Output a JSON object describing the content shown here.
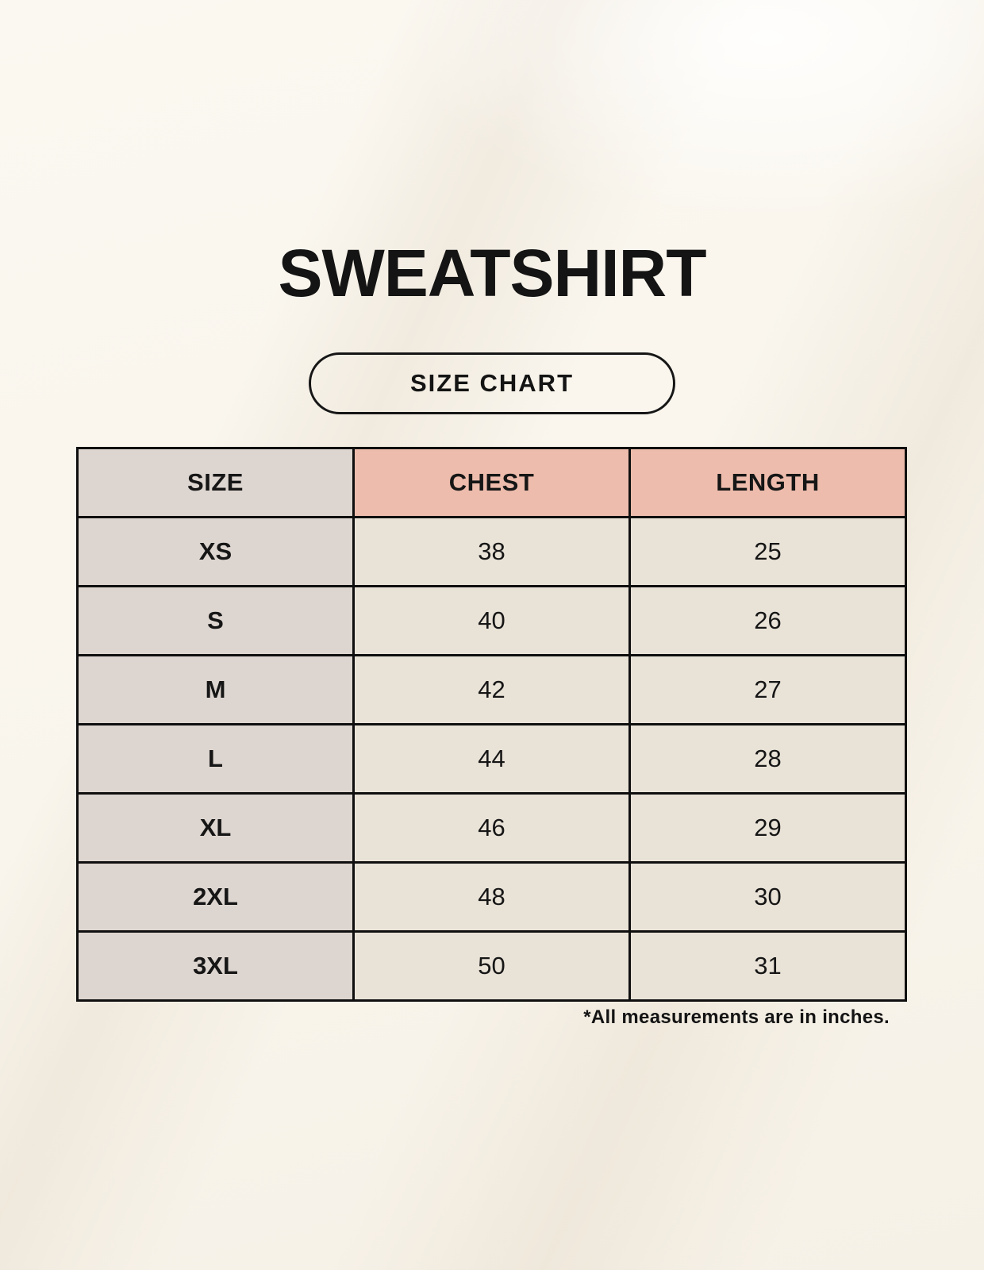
{
  "page": {
    "title": "SWEATSHIRT",
    "size_chart_label": "SIZE CHART",
    "footnote": "*All measurements are in inches."
  },
  "chart_data": {
    "type": "table",
    "title": "SWEATSHIRT",
    "subtitle": "SIZE CHART",
    "columns": [
      "SIZE",
      "CHEST",
      "LENGTH"
    ],
    "rows": [
      [
        "XS",
        "38",
        "25"
      ],
      [
        "S",
        "40",
        "26"
      ],
      [
        "M",
        "42",
        "27"
      ],
      [
        "L",
        "44",
        "28"
      ],
      [
        "XL",
        "46",
        "29"
      ],
      [
        "2XL",
        "48",
        "30"
      ],
      [
        "3XL",
        "50",
        "31"
      ]
    ],
    "footnote": "*All measurements are in inches."
  },
  "colors": {
    "background": "#f9f5ed",
    "size_column_bg": "#ddd5cf",
    "header_accent_bg": "#edbcac",
    "data_cell_bg": "#e9e2d7",
    "border": "#0f0f0f",
    "text": "#161616"
  }
}
